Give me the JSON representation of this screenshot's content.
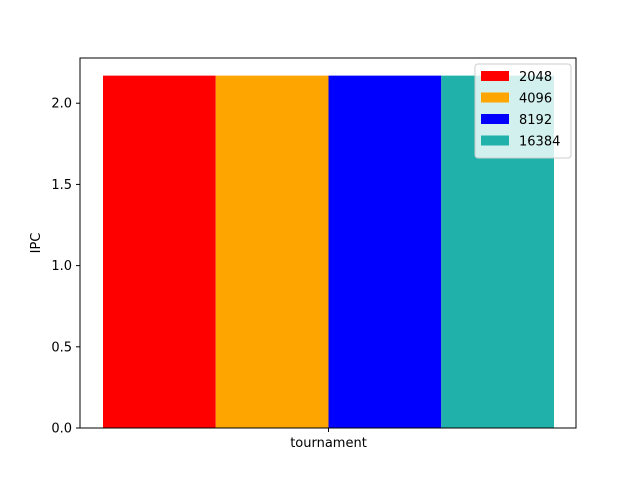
{
  "chart_data": {
    "type": "bar",
    "categories": [
      "tournament"
    ],
    "series": [
      {
        "name": "2048",
        "values": [
          2.17
        ],
        "color": "#ff0000"
      },
      {
        "name": "4096",
        "values": [
          2.17
        ],
        "color": "#ffa500"
      },
      {
        "name": "8192",
        "values": [
          2.17
        ],
        "color": "#0000ff"
      },
      {
        "name": "16384",
        "values": [
          2.17
        ],
        "color": "#20b2aa"
      }
    ],
    "title": "",
    "xlabel": "",
    "ylabel": "IPC",
    "ylim": [
      0,
      2.2785
    ],
    "yticks": [
      0.0,
      0.5,
      1.0,
      1.5,
      2.0
    ],
    "ytick_labels": [
      "0.0",
      "0.5",
      "1.0",
      "1.5",
      "2.0"
    ],
    "grid": false,
    "legend_position": "top-right"
  }
}
